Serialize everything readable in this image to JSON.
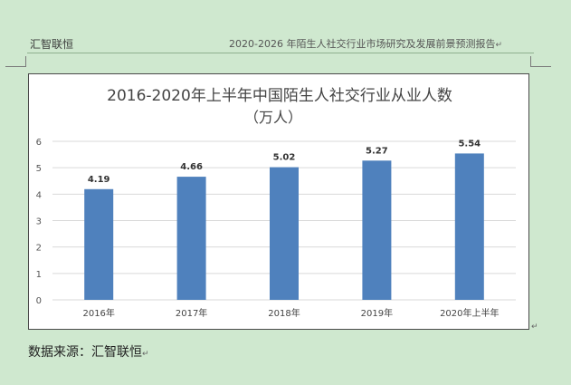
{
  "header": {
    "left_text": "汇智联恒",
    "right_text": "2020-2026 年陌生人社交行业市场研究及发展前景预测报告"
  },
  "source_text": "数据来源：汇智联恒",
  "paragraph_mark": "↵",
  "colors": {
    "page_bg": "#cfe8cf",
    "bar": "#4f81bd",
    "grid": "#d9d9d9"
  },
  "chart_data": {
    "type": "bar",
    "title": "2016-2020年上半年中国陌生人社交行业从业人数",
    "subtitle": "（万人）",
    "categories": [
      "2016年",
      "2017年",
      "2018年",
      "2019年",
      "2020年上半年"
    ],
    "values": [
      4.19,
      4.66,
      5.02,
      5.27,
      5.54
    ],
    "value_labels": [
      "4.19",
      "4.66",
      "5.02",
      "5.27",
      "5.54"
    ],
    "ylim": [
      0,
      6
    ],
    "yticks": [
      0,
      1,
      2,
      3,
      4,
      5,
      6
    ],
    "grid": true,
    "legend": "none",
    "xlabel": "",
    "ylabel": ""
  }
}
